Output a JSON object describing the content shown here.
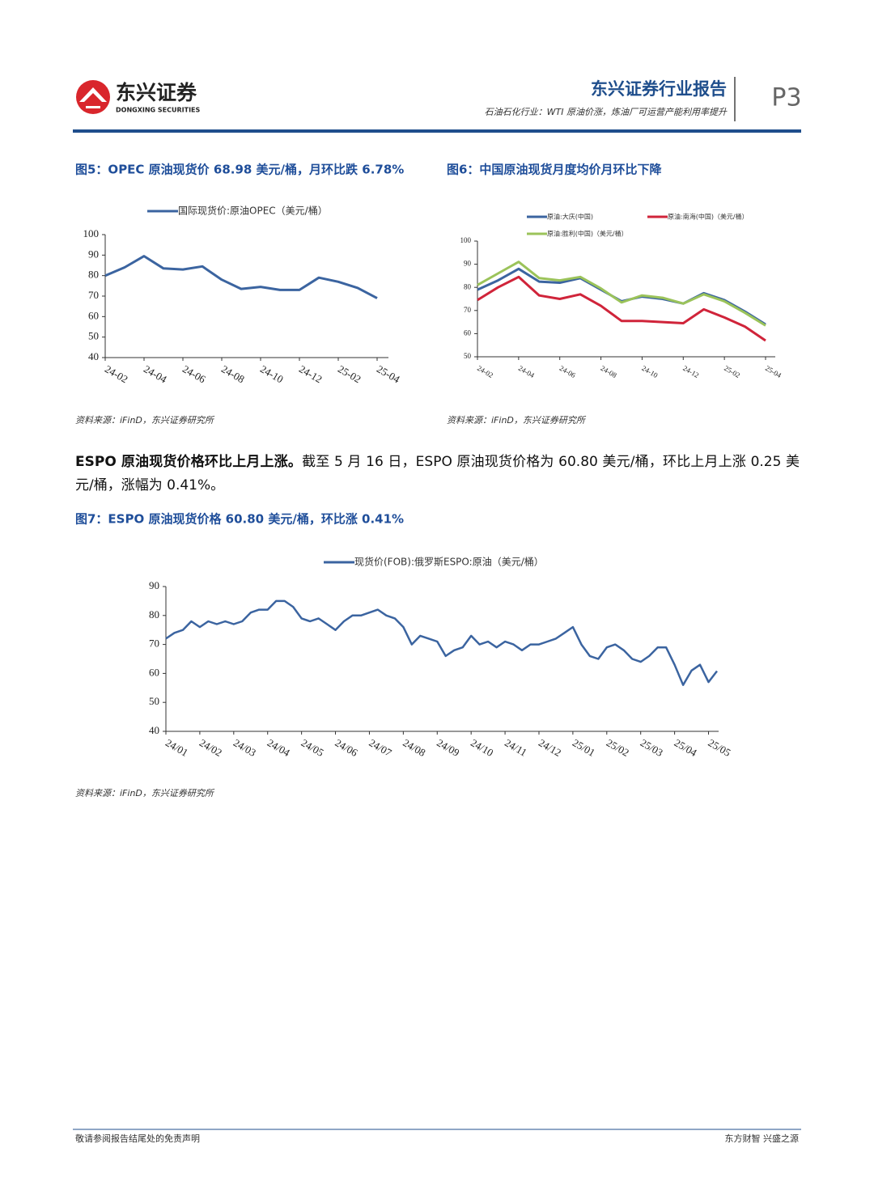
{
  "header": {
    "logo_cn": "东兴证券",
    "logo_en": "DONGXING SECURITIES",
    "report": "东兴证券行业报告",
    "subtitle": "石油石化行业：WTI 原油价涨，炼油厂可运营产能利用率提升",
    "page": "P3"
  },
  "chart_data": [
    {
      "type": "line",
      "title": "图5：OPEC 原油现货价 68.98 美元/桶，月环比跌 6.78%",
      "source": "资料来源：iFinD，东兴证券研究所",
      "categories": [
        "24-02",
        null,
        "24-04",
        null,
        "24-06",
        null,
        "24-08",
        null,
        "24-10",
        null,
        "24-12",
        null,
        "25-02",
        null,
        "25-04"
      ],
      "series": [
        {
          "name": "国际现货价:原油OPEC（美元/桶）",
          "color": "#3b64a0",
          "values": [
            80,
            84,
            89.5,
            83.5,
            83,
            84.5,
            78,
            73.5,
            74.5,
            73,
            73,
            79,
            77,
            74,
            68.98
          ]
        }
      ],
      "ylim": [
        40,
        100
      ],
      "yticks": [
        40,
        50,
        60,
        70,
        80,
        90,
        100
      ],
      "legend": "top"
    },
    {
      "type": "line",
      "title": "图6：中国原油现货月度均价月环比下降",
      "source": "资料来源：iFinD，东兴证券研究所",
      "categories": [
        "24-02",
        null,
        "24-04",
        null,
        "24-06",
        null,
        "24-08",
        null,
        "24-10",
        null,
        "24-12",
        null,
        "25-02",
        null,
        "25-04"
      ],
      "series": [
        {
          "name": "原油:大庆(中国)",
          "color": "#3b64a0",
          "values": [
            79,
            83,
            88,
            82.5,
            82,
            84,
            79,
            74,
            76,
            75,
            73,
            77.5,
            74.5,
            69.5,
            64
          ]
        },
        {
          "name": "原油:南海(中国)（美元/桶）",
          "color": "#d0243a",
          "values": [
            74.5,
            80,
            84.5,
            76.5,
            75,
            77,
            72,
            65.5,
            65.5,
            65,
            64.5,
            70.5,
            67,
            63,
            57
          ]
        },
        {
          "name": "原油:胜利(中国)（美元/桶）",
          "color": "#9bc35a",
          "values": [
            81,
            86,
            91,
            84,
            83,
            84.5,
            79.5,
            73.5,
            76.5,
            75.5,
            73,
            77,
            74,
            69,
            63.5
          ]
        }
      ],
      "ylim": [
        50,
        100
      ],
      "yticks": [
        50,
        60,
        70,
        80,
        90,
        100
      ],
      "legend": "top"
    },
    {
      "type": "line",
      "title": "图7：ESPO 原油现货价格 60.80 美元/桶，环比涨 0.41%",
      "source": "资料来源：iFinD，东兴证券研究所",
      "categories": [
        "24/01",
        null,
        null,
        null,
        "24/02",
        null,
        null,
        null,
        "24/03",
        null,
        null,
        null,
        "24/04",
        null,
        null,
        null,
        "24/05",
        null,
        null,
        null,
        "24/06",
        null,
        null,
        null,
        "24/07",
        null,
        null,
        null,
        "24/08",
        null,
        null,
        null,
        "24/09",
        null,
        null,
        null,
        "24/10",
        null,
        null,
        null,
        "24/11",
        null,
        null,
        null,
        "24/12",
        null,
        null,
        null,
        "25/01",
        null,
        null,
        null,
        "25/02",
        null,
        null,
        null,
        "25/03",
        null,
        null,
        null,
        "25/04",
        null,
        null,
        null,
        "25/05",
        null
      ],
      "series": [
        {
          "name": "现货价(FOB):俄罗斯ESPO:原油（美元/桶）",
          "color": "#3b64a0",
          "values": [
            72,
            74,
            75,
            78,
            76,
            78,
            77,
            78,
            77,
            78,
            81,
            82,
            82,
            85,
            85,
            83,
            79,
            78,
            79,
            77,
            75,
            78,
            80,
            80,
            81,
            82,
            80,
            79,
            76,
            70,
            73,
            72,
            71,
            66,
            68,
            69,
            73,
            70,
            71,
            69,
            71,
            70,
            68,
            70,
            70,
            71,
            72,
            74,
            76,
            70,
            66,
            65,
            69,
            70,
            68,
            65,
            64,
            66,
            69,
            69,
            63,
            56,
            61,
            63,
            57,
            60.8
          ]
        }
      ],
      "ylim": [
        40,
        90
      ],
      "yticks": [
        40,
        50,
        60,
        70,
        80,
        90
      ],
      "legend": "top"
    }
  ],
  "paragraph": {
    "lead": "ESPO 原油现货价格环比上月上涨。",
    "body": "截至 5 月 16 日，ESPO 原油现货价格为 60.80 美元/桶，环比上月上涨 0.25 美元/桶，涨幅为 0.41%。"
  },
  "footer": {
    "left": "敬请参阅报告结尾处的免责声明",
    "right": "东方财智 兴盛之源"
  }
}
